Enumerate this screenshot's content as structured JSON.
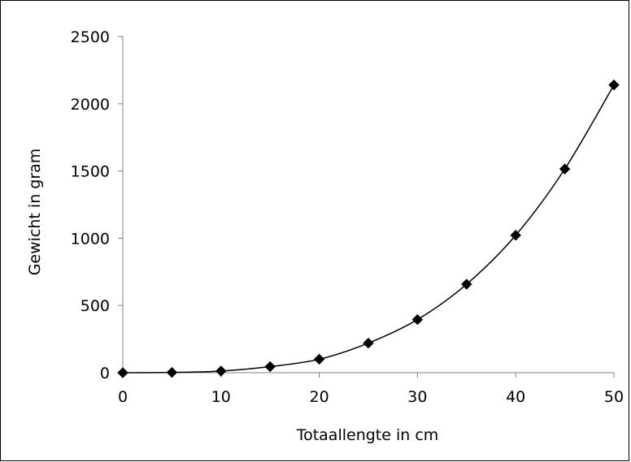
{
  "chart_data": {
    "type": "scatter",
    "title": "",
    "xlabel": "Totaallengte in cm",
    "ylabel": "Gewicht in gram",
    "xlim": [
      0,
      50
    ],
    "ylim": [
      0,
      2500
    ],
    "xticks": [
      0,
      10,
      20,
      30,
      40,
      50
    ],
    "yticks": [
      0,
      500,
      1000,
      1500,
      2000,
      2500
    ],
    "grid": false,
    "legend": "none",
    "line": "smooth",
    "marker": "diamond",
    "colors": {
      "series": "#000000",
      "axis": "#808080"
    },
    "series": [
      {
        "x": [
          0,
          5,
          10,
          15,
          20,
          25,
          30,
          35,
          40,
          45,
          50
        ],
        "values": [
          0,
          2,
          12,
          45,
          100,
          220,
          395,
          658,
          1022,
          1515,
          2140
        ]
      }
    ]
  }
}
